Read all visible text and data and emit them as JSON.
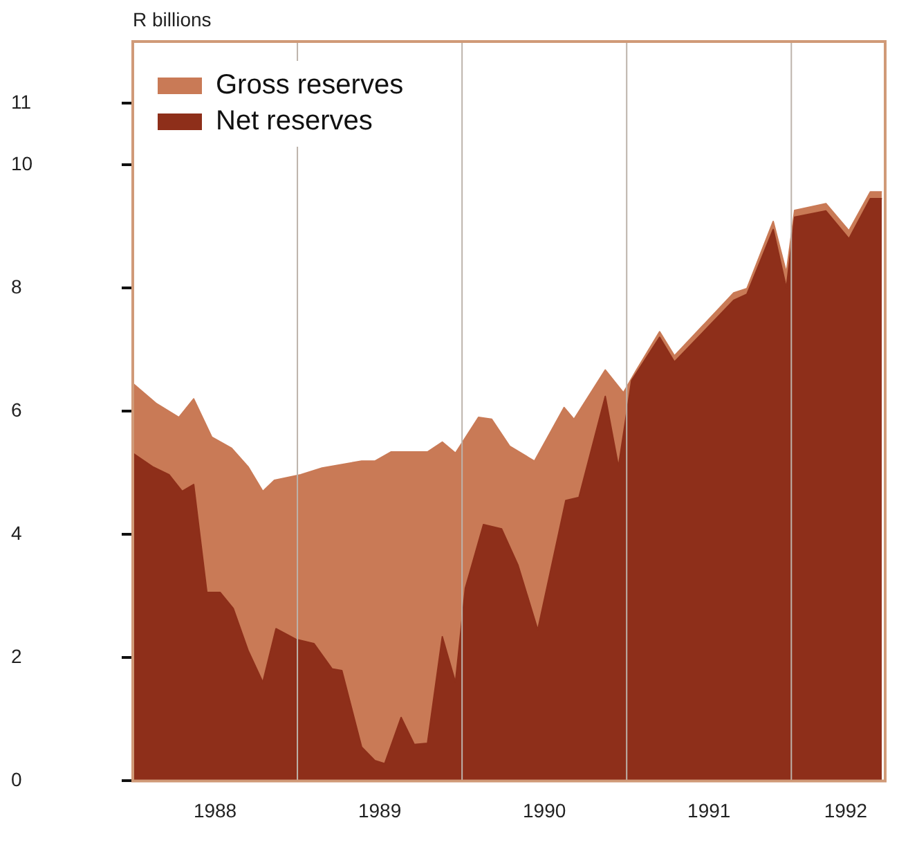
{
  "chart_data": {
    "type": "area",
    "ylabel": "R billions",
    "series": [
      {
        "name": "Gross reserves",
        "color": "#c97a56",
        "x": [
          1988.0,
          1988.14,
          1988.28,
          1988.37,
          1988.48,
          1988.6,
          1988.7,
          1988.79,
          1988.86,
          1989.02,
          1989.15,
          1989.39,
          1989.47,
          1989.57,
          1989.79,
          1989.88,
          1989.96,
          1990.1,
          1990.18,
          1990.29,
          1990.44,
          1990.62,
          1990.68,
          1990.87,
          1990.98,
          1991.06,
          1991.2,
          1991.29,
          1991.65,
          1991.73,
          1991.89,
          1991.97,
          1992.02,
          1992.21,
          1992.35,
          1992.48,
          1992.55
        ],
        "values": [
          6.45,
          6.13,
          5.9,
          6.2,
          5.58,
          5.4,
          5.1,
          4.7,
          4.88,
          4.97,
          5.08,
          5.19,
          5.19,
          5.34,
          5.34,
          5.5,
          5.32,
          5.9,
          5.87,
          5.43,
          5.19,
          6.06,
          5.87,
          6.67,
          6.3,
          6.67,
          7.29,
          6.9,
          7.92,
          7.99,
          9.08,
          8.25,
          9.26,
          9.37,
          8.93,
          9.56,
          9.56
        ]
      },
      {
        "name": "Net reserves",
        "color": "#8e2f1a",
        "x": [
          1988.0,
          1988.12,
          1988.22,
          1988.3,
          1988.37,
          1988.45,
          1988.53,
          1988.61,
          1988.7,
          1988.79,
          1988.87,
          1988.99,
          1989.1,
          1989.21,
          1989.27,
          1989.39,
          1989.47,
          1989.53,
          1989.63,
          1989.71,
          1989.79,
          1989.88,
          1989.96,
          1990.02,
          1990.13,
          1990.24,
          1990.34,
          1990.46,
          1990.63,
          1990.71,
          1990.87,
          1990.95,
          1991.03,
          1991.2,
          1991.29,
          1991.65,
          1991.73,
          1991.89,
          1991.97,
          1992.02,
          1992.21,
          1992.35,
          1992.48,
          1992.55
        ],
        "values": [
          5.32,
          5.1,
          4.97,
          4.7,
          4.81,
          3.06,
          3.06,
          2.8,
          2.12,
          1.6,
          2.47,
          2.3,
          2.23,
          1.82,
          1.79,
          0.55,
          0.33,
          0.28,
          1.03,
          0.59,
          0.61,
          2.34,
          1.6,
          3.13,
          4.16,
          4.09,
          3.5,
          2.45,
          4.55,
          4.6,
          6.24,
          5.1,
          6.5,
          7.2,
          6.8,
          7.8,
          7.9,
          8.95,
          8.0,
          9.15,
          9.25,
          8.8,
          9.45,
          9.45
        ]
      }
    ],
    "xlim": [
      1988,
      1992.57
    ],
    "xticks": [
      {
        "value": 1988.5,
        "label": "1988"
      },
      {
        "value": 1989.5,
        "label": "1989"
      },
      {
        "value": 1990.5,
        "label": "1990"
      },
      {
        "value": 1991.5,
        "label": "1991"
      },
      {
        "value": 1992.33,
        "label": "1992"
      }
    ],
    "ylim": [
      0,
      12
    ],
    "yticks": [
      0,
      2,
      4,
      6,
      8,
      10,
      11
    ],
    "ref_lines": [
      {
        "axis": "x",
        "value": 1989,
        "color": "#bdb3ab"
      },
      {
        "axis": "x",
        "value": 1990,
        "color": "#bdb3ab"
      },
      {
        "axis": "x",
        "value": 1991,
        "color": "#bdb3ab"
      },
      {
        "axis": "x",
        "value": 1992,
        "color": "#bdb3ab"
      }
    ],
    "grid": false,
    "legend": "top left"
  }
}
